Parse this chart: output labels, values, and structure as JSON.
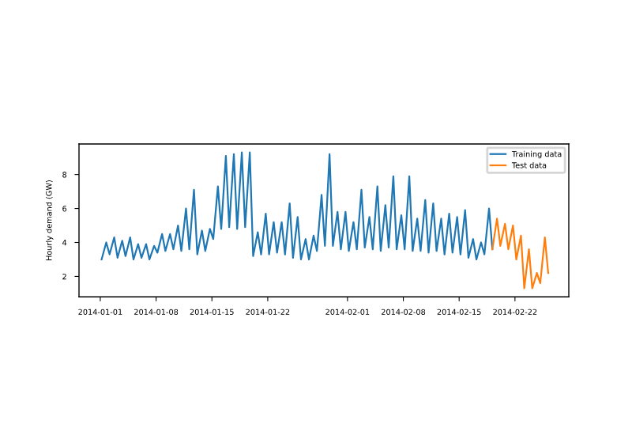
{
  "chart_data": {
    "type": "line",
    "ylabel": "Hourly demand (GW)",
    "xlim": [
      "2013-12-29T08:00",
      "2014-02-28T18:00"
    ],
    "ylim": [
      0.8,
      9.8
    ],
    "xticks": [
      "2014-01-01",
      "2014-01-08",
      "2014-01-15",
      "2014-01-22",
      "2014-02-01",
      "2014-02-08",
      "2014-02-15",
      "2014-02-22"
    ],
    "yticks": [
      2,
      4,
      6,
      8
    ],
    "grid": false,
    "legend": "top right",
    "series": [
      {
        "name": "Training data",
        "color": "#1f77b4",
        "x": [
          "2014-01-01T04:00",
          "2014-01-01T18:00",
          "2014-01-02T04:00",
          "2014-01-02T18:00",
          "2014-01-03T04:00",
          "2014-01-03T18:00",
          "2014-01-04T04:00",
          "2014-01-04T18:00",
          "2014-01-05T04:00",
          "2014-01-05T18:00",
          "2014-01-06T04:00",
          "2014-01-06T18:00",
          "2014-01-07T04:00",
          "2014-01-07T18:00",
          "2014-01-08T04:00",
          "2014-01-08T18:00",
          "2014-01-09T04:00",
          "2014-01-09T18:00",
          "2014-01-10T04:00",
          "2014-01-10T18:00",
          "2014-01-11T04:00",
          "2014-01-11T18:00",
          "2014-01-12T04:00",
          "2014-01-12T18:00",
          "2014-01-13T04:00",
          "2014-01-13T18:00",
          "2014-01-14T04:00",
          "2014-01-14T18:00",
          "2014-01-15T04:00",
          "2014-01-15T18:00",
          "2014-01-16T04:00",
          "2014-01-16T18:00",
          "2014-01-17T04:00",
          "2014-01-17T18:00",
          "2014-01-18T04:00",
          "2014-01-18T18:00",
          "2014-01-19T04:00",
          "2014-01-19T18:00",
          "2014-01-20T04:00",
          "2014-01-20T18:00",
          "2014-01-21T04:00",
          "2014-01-21T18:00",
          "2014-01-22T04:00",
          "2014-01-22T18:00",
          "2014-01-23T04:00",
          "2014-01-23T18:00",
          "2014-01-24T04:00",
          "2014-01-24T18:00",
          "2014-01-25T04:00",
          "2014-01-25T18:00",
          "2014-01-26T04:00",
          "2014-01-26T18:00",
          "2014-01-27T04:00",
          "2014-01-27T18:00",
          "2014-01-28T04:00",
          "2014-01-28T18:00",
          "2014-01-29T04:00",
          "2014-01-29T18:00",
          "2014-01-30T04:00",
          "2014-01-30T18:00",
          "2014-01-31T04:00",
          "2014-01-31T18:00",
          "2014-02-01T04:00",
          "2014-02-01T18:00",
          "2014-02-02T04:00",
          "2014-02-02T18:00",
          "2014-02-03T04:00",
          "2014-02-03T18:00",
          "2014-02-04T04:00",
          "2014-02-04T18:00",
          "2014-02-05T04:00",
          "2014-02-05T18:00",
          "2014-02-06T04:00",
          "2014-02-06T18:00",
          "2014-02-07T04:00",
          "2014-02-07T18:00",
          "2014-02-08T04:00",
          "2014-02-08T18:00",
          "2014-02-09T04:00",
          "2014-02-09T18:00",
          "2014-02-10T04:00",
          "2014-02-10T18:00",
          "2014-02-11T04:00",
          "2014-02-11T18:00",
          "2014-02-12T04:00",
          "2014-02-12T18:00",
          "2014-02-13T04:00",
          "2014-02-13T18:00",
          "2014-02-14T04:00",
          "2014-02-14T18:00",
          "2014-02-15T04:00",
          "2014-02-15T18:00",
          "2014-02-16T04:00",
          "2014-02-16T18:00",
          "2014-02-17T04:00",
          "2014-02-17T18:00",
          "2014-02-18T04:00",
          "2014-02-18T18:00",
          "2014-02-19T04:00"
        ],
        "values": [
          3.0,
          4.0,
          3.3,
          4.3,
          3.1,
          4.1,
          3.2,
          4.3,
          3.0,
          3.9,
          3.1,
          3.9,
          3.0,
          3.8,
          3.4,
          4.5,
          3.5,
          4.5,
          3.6,
          5.0,
          3.5,
          6.0,
          3.6,
          7.1,
          3.3,
          4.7,
          3.5,
          4.8,
          4.2,
          7.3,
          4.8,
          9.1,
          4.9,
          9.2,
          4.8,
          9.3,
          4.9,
          9.3,
          3.2,
          4.6,
          3.3,
          5.7,
          3.3,
          5.2,
          3.4,
          5.2,
          3.3,
          6.3,
          3.1,
          5.5,
          3.0,
          4.2,
          3.0,
          4.4,
          3.5,
          6.8,
          3.8,
          9.2,
          3.8,
          5.8,
          3.6,
          5.8,
          3.5,
          5.2,
          3.6,
          7.1,
          3.7,
          5.5,
          3.6,
          7.3,
          3.5,
          6.2,
          3.7,
          7.9,
          3.6,
          5.6,
          3.6,
          7.9,
          3.5,
          5.4,
          3.5,
          6.5,
          3.4,
          6.3,
          3.5,
          5.4,
          3.3,
          5.7,
          3.4,
          5.5,
          3.3,
          5.9,
          3.1,
          4.2,
          3.0,
          4.0,
          3.3,
          6.0,
          3.6
        ]
      },
      {
        "name": "Test data",
        "color": "#ff7f0e",
        "x": [
          "2014-02-19T04:00",
          "2014-02-19T18:00",
          "2014-02-20T04:00",
          "2014-02-20T18:00",
          "2014-02-21T04:00",
          "2014-02-21T18:00",
          "2014-02-22T04:00",
          "2014-02-22T18:00",
          "2014-02-23T04:00",
          "2014-02-23T18:00",
          "2014-02-24T04:00",
          "2014-02-24T18:00",
          "2014-02-25T04:00",
          "2014-02-25T18:00",
          "2014-02-26T04:00"
        ],
        "values": [
          3.6,
          5.4,
          3.8,
          5.1,
          3.6,
          5.0,
          3.0,
          4.4,
          1.3,
          3.6,
          1.3,
          2.2,
          1.6,
          4.3,
          2.2
        ]
      }
    ]
  }
}
